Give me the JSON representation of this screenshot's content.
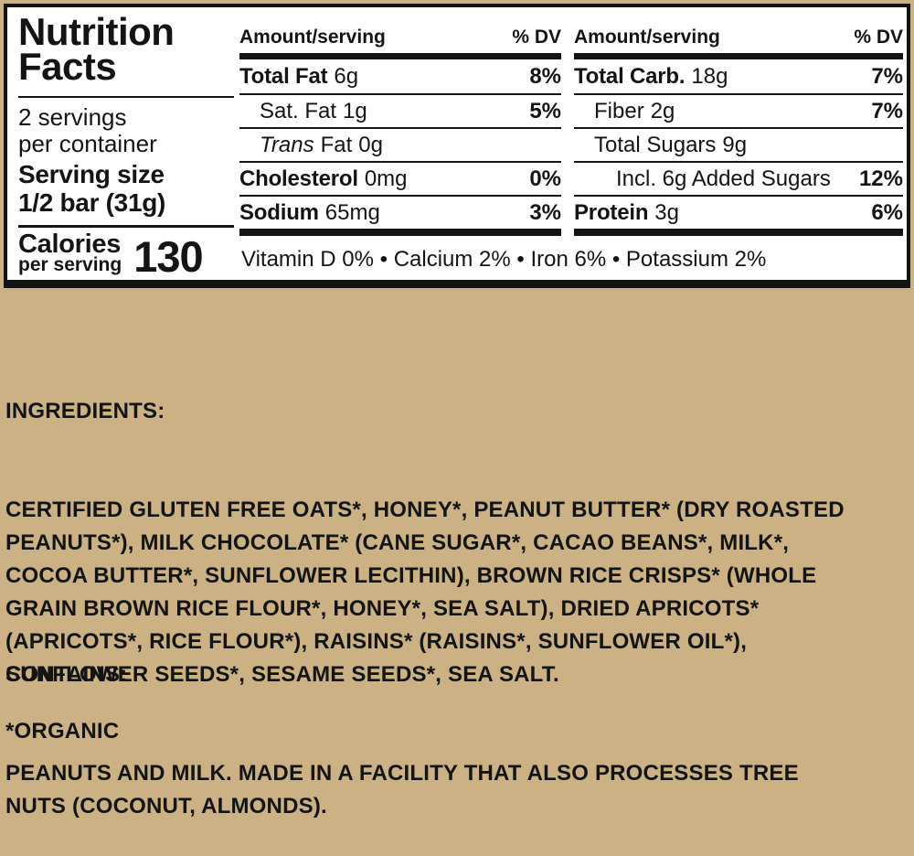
{
  "colors": {
    "background": "#cbb183",
    "panel_bg": "#ffffff",
    "ink": "#141414"
  },
  "panel": {
    "title_lines": [
      "Nutrition",
      "Facts"
    ],
    "servings_lines": [
      "2 servings",
      "per container"
    ],
    "serving_size_lines": [
      "Serving size",
      "1/2 bar (31g)"
    ],
    "calories_label": "Calories",
    "calories_sublabel": "per serving",
    "calories_value": "130",
    "col_amount": "Amount/serving",
    "col_dv": "% DV",
    "mid_rows": [
      {
        "name": "Total Fat",
        "amount": "6g",
        "dv": "8%"
      },
      {
        "name": "Sat. Fat",
        "amount": "1g",
        "dv": "5%"
      },
      {
        "it": "Trans",
        "name": "Fat",
        "amount": "0g",
        "dv": ""
      },
      {
        "name": "Cholesterol",
        "amount": "0mg",
        "dv": "0%"
      },
      {
        "name": "Sodium",
        "amount": "65mg",
        "dv": "3%"
      }
    ],
    "right_rows": [
      {
        "name": "Total Carb.",
        "amount": "18g",
        "dv": "7%"
      },
      {
        "name": "Fiber",
        "amount": "2g",
        "dv": "7%"
      },
      {
        "name": "Total Sugars",
        "amount": "9g",
        "dv": ""
      },
      {
        "name": "Incl. 6g Added Sugars",
        "amount": "",
        "dv": "12%"
      },
      {
        "name": "Protein",
        "amount": "3g",
        "dv": "6%"
      }
    ],
    "micronutrients": "Vitamin D 0% • Calcium 2% • Iron 6% • Potassium 2%"
  },
  "ingredients": {
    "heading": "INGREDIENTS:",
    "lines": [
      "CERTIFIED GLUTEN FREE OATS*, HONEY*, PEANUT BUTTER* (DRY ROASTED",
      "PEANUTS*), MILK CHOCOLATE* (CANE SUGAR*, CACAO BEANS*, MILK*,",
      "COCOA BUTTER*, SUNFLOWER LECITHIN), BROWN RICE CRISPS* (WHOLE",
      "GRAIN BROWN RICE FLOUR*, HONEY*, SEA SALT), DRIED APRICOTS*",
      "(APRICOTS*, RICE FLOUR*), RAISINS* (RAISINS*, SUNFLOWER OIL*),",
      "SUNFLOWER SEEDS*, SESAME SEEDS*, SEA SALT."
    ]
  },
  "contains": {
    "heading": "CONTAINS:",
    "lines": [
      "PEANUTS AND MILK. MADE IN A FACILITY THAT ALSO PROCESSES TREE",
      "NUTS (COCONUT, ALMONDS)."
    ]
  },
  "footnote": "*ORGANIC"
}
